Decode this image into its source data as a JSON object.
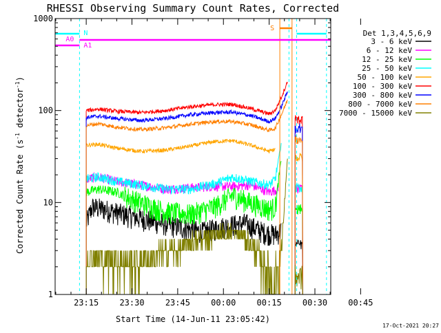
{
  "chart_data": {
    "type": "line",
    "title": "RHESSI Observing Summary Count Rates, Corrected",
    "xlabel": "Start Time (14-Jun-11 23:05:42)",
    "ylabel_main": "Corrected Count Rate (s",
    "ylabel_sup1": "-1",
    "ylabel_mid": " detector",
    "ylabel_sup2": "-1",
    "ylabel_end": ")",
    "yscale": "log",
    "ylim": [
      1,
      1000
    ],
    "xlim_minutes": [
      -10.2,
      80.2
    ],
    "x_ticks": [
      {
        "label": "23:15",
        "min": 0
      },
      {
        "label": "23:30",
        "min": 15
      },
      {
        "label": "23:45",
        "min": 30
      },
      {
        "label": "00:00",
        "min": 45
      },
      {
        "label": "00:15",
        "min": 60
      },
      {
        "label": "00:30",
        "min": 75
      },
      {
        "label": "00:45",
        "min": 90
      }
    ],
    "y_ticks": [
      {
        "label": "1",
        "value": 1
      },
      {
        "label": "10",
        "value": 10
      },
      {
        "label": "100",
        "value": 100
      },
      {
        "label": "1000",
        "value": 1000
      }
    ],
    "legend_header": "Det 1,3,4,5,6,9",
    "legend_placement": "right",
    "series": [
      {
        "name": "3 - 6 keV",
        "color": "#000000",
        "x": [
          0,
          2,
          6,
          12,
          20,
          30,
          38,
          45,
          52,
          58,
          62,
          64
        ],
        "y": [
          6,
          9,
          8.5,
          7.5,
          6.5,
          5.5,
          4.8,
          5.5,
          6,
          4.8,
          4.5,
          5
        ]
      },
      {
        "name": "6 - 12 keV",
        "color": "#ff00ff",
        "x": [
          0,
          4,
          10,
          18,
          26,
          34,
          42,
          48,
          54,
          60,
          63
        ],
        "y": [
          18,
          19,
          17,
          15.5,
          14,
          14.5,
          15,
          15,
          15.5,
          13,
          14
        ]
      },
      {
        "name": "12 - 25 keV",
        "color": "#00ff00",
        "x": [
          0,
          4,
          10,
          18,
          26,
          34,
          42,
          48,
          54,
          60,
          62,
          64
        ],
        "y": [
          13,
          14,
          13,
          10,
          8,
          7.5,
          9,
          12,
          10,
          8.5,
          9,
          30
        ]
      },
      {
        "name": "25 - 50 keV",
        "color": "#00ffff",
        "x": [
          0,
          4,
          10,
          18,
          26,
          34,
          42,
          48,
          54,
          60,
          62,
          64
        ],
        "y": [
          18,
          19,
          17,
          15.5,
          14,
          14,
          16,
          19,
          17,
          15.5,
          18,
          45
        ]
      },
      {
        "name": "50 - 100 keV",
        "color": "#ffa500",
        "x": [
          0,
          4,
          10,
          18,
          26,
          34,
          42,
          48,
          54,
          60,
          62
        ],
        "y": [
          42,
          43,
          39,
          36,
          37,
          41,
          46,
          47,
          42,
          36,
          38
        ]
      },
      {
        "name": "100 - 300 keV",
        "color": "#ff0000",
        "x": [
          0,
          4,
          10,
          18,
          26,
          34,
          42,
          48,
          54,
          60,
          62,
          64,
          66
        ],
        "y": [
          100,
          104,
          98,
          95,
          100,
          110,
          116,
          117,
          105,
          92,
          100,
          140,
          205
        ]
      },
      {
        "name": "300 - 800 keV",
        "color": "#0000ff",
        "x": [
          0,
          4,
          10,
          18,
          26,
          34,
          42,
          48,
          54,
          60,
          62,
          64,
          66
        ],
        "y": [
          84,
          87,
          82,
          78,
          82,
          90,
          95,
          96,
          88,
          76,
          82,
          110,
          160
        ]
      },
      {
        "name": "800 - 7000 keV",
        "color": "#ff8000",
        "x": [
          0,
          4,
          10,
          18,
          26,
          34,
          42,
          48,
          54,
          60,
          62,
          64,
          66
        ],
        "y": [
          69,
          72,
          66,
          62,
          65,
          71,
          76,
          76,
          70,
          61,
          64,
          90,
          130
        ]
      },
      {
        "name": "7000 - 15000 keV",
        "color": "#808000",
        "x": [
          0,
          3,
          8,
          14,
          18,
          24,
          30,
          36,
          42,
          48,
          52,
          56,
          60,
          62,
          64,
          66
        ],
        "y": [
          2.7,
          2.6,
          2.4,
          2.2,
          2.3,
          2.7,
          3.2,
          3.8,
          4.5,
          4.8,
          4.2,
          2.8,
          1.6,
          1.5,
          3,
          30
        ]
      }
    ],
    "post_gap_levels": {
      "x_range": [
        68.5,
        71
      ],
      "values": [
        3.5,
        14,
        8.5,
        14.5,
        31,
        80,
        65,
        48,
        1.6
      ]
    },
    "annotations": [
      {
        "text": "A0",
        "color": "#ff00ff"
      },
      {
        "text": "A1",
        "color": "#ff00ff"
      },
      {
        "text": "N",
        "color": "#00ffff"
      },
      {
        "text": "S",
        "color": "#ff8000"
      }
    ],
    "state_bars": {
      "night_color": "#00ffff",
      "attenuator_color": "#ff00ff",
      "saa_color": "#ff8000",
      "night_segments_min": [
        [
          -10.2,
          -2.2
        ],
        [
          69,
          78.8
        ]
      ],
      "attenuator_min": [
        -10.2,
        80.2
      ],
      "saa_min": [
        63.5,
        67.5
      ],
      "dashed_lines_min": [
        -2.2,
        66.5,
        69,
        78.8
      ],
      "solid_lines_min": [
        -10.2,
        63.5,
        67.5
      ]
    },
    "timestamp": "17-Oct-2021 20:27"
  }
}
